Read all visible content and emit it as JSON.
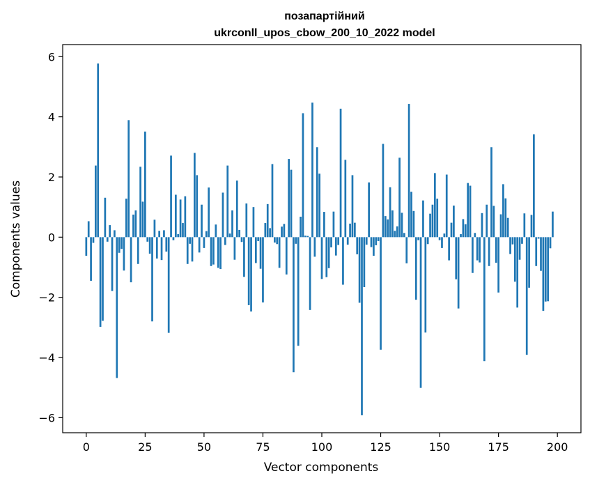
{
  "chart_data": {
    "type": "bar",
    "title_line1": "позапартійний",
    "title_line2": "ukrconll_upos_cbow_200_10_2022 model",
    "xlabel": "Vector components",
    "ylabel": "Components values",
    "xlim": [
      -10,
      210
    ],
    "ylim": [
      -6.5,
      6.4
    ],
    "xticks": [
      0,
      25,
      50,
      75,
      100,
      125,
      150,
      175,
      200
    ],
    "yticks": [
      -6,
      -4,
      -2,
      0,
      2,
      4,
      6
    ],
    "xtick_labels": [
      "0",
      "25",
      "50",
      "75",
      "100",
      "125",
      "150",
      "175",
      "200"
    ],
    "ytick_labels": [
      "−6",
      "−4",
      "−2",
      "0",
      "2",
      "4",
      "6"
    ],
    "bar_color": "#1f77b4",
    "grid": false,
    "values": [
      -0.62,
      0.53,
      -1.45,
      -0.19,
      2.38,
      5.77,
      -2.98,
      -2.78,
      1.31,
      -0.15,
      0.4,
      -1.79,
      0.23,
      -4.68,
      -0.52,
      -0.39,
      -1.11,
      1.28,
      3.89,
      -1.5,
      0.75,
      0.89,
      -0.89,
      2.34,
      1.18,
      3.51,
      -0.15,
      -0.55,
      -2.8,
      0.58,
      -0.71,
      0.21,
      -0.76,
      0.23,
      -0.48,
      -3.18,
      2.71,
      -0.1,
      1.41,
      0.1,
      1.25,
      0.47,
      1.36,
      -0.89,
      -0.22,
      -0.81,
      2.8,
      2.06,
      -0.51,
      1.08,
      -0.36,
      0.2,
      1.65,
      -0.96,
      -0.91,
      0.42,
      -1.02,
      -1.06,
      1.48,
      -0.26,
      2.38,
      0.12,
      0.89,
      -0.75,
      1.88,
      0.24,
      -0.16,
      -1.32,
      1.12,
      -2.26,
      -2.47,
      1.0,
      -0.86,
      -0.13,
      -1.05,
      -2.17,
      0.47,
      1.1,
      0.3,
      2.43,
      -0.18,
      -0.23,
      -1.02,
      0.35,
      0.44,
      -1.24,
      2.6,
      2.24,
      -4.49,
      -0.22,
      -3.61,
      0.68,
      4.12,
      0.05,
      0.04,
      -2.42,
      4.47,
      -0.65,
      2.99,
      2.11,
      -1.39,
      0.84,
      -1.33,
      -1.03,
      -0.34,
      0.85,
      -0.61,
      -0.26,
      4.27,
      -1.58,
      2.57,
      -0.25,
      0.45,
      2.06,
      0.48,
      -0.57,
      -2.18,
      -5.92,
      -1.66,
      -0.25,
      1.82,
      -0.33,
      -0.62,
      -0.27,
      -0.13,
      -3.74,
      3.1,
      0.7,
      0.59,
      1.66,
      0.89,
      0.21,
      0.36,
      2.64,
      0.81,
      0.14,
      -0.87,
      4.43,
      1.51,
      0.87,
      -2.08,
      -0.1,
      -5.01,
      1.22,
      -3.17,
      -0.23,
      0.78,
      1.08,
      2.13,
      1.28,
      -0.1,
      -0.36,
      0.12,
      2.08,
      -0.77,
      0.48,
      1.05,
      -1.4,
      -2.37,
      0.1,
      0.6,
      0.43,
      1.8,
      1.71,
      -1.19,
      0.14,
      -0.77,
      -0.84,
      0.8,
      -4.12,
      1.08,
      -0.96,
      2.99,
      1.04,
      -0.85,
      -1.84,
      0.76,
      1.76,
      1.29,
      0.64,
      -0.56,
      -0.24,
      -1.48,
      -2.34,
      -0.75,
      -0.22,
      0.79,
      -3.91,
      -1.68,
      0.74,
      3.42,
      -0.96,
      -0.05,
      -1.12,
      -2.45,
      -2.14,
      -2.13,
      -0.37,
      0.85
    ]
  }
}
